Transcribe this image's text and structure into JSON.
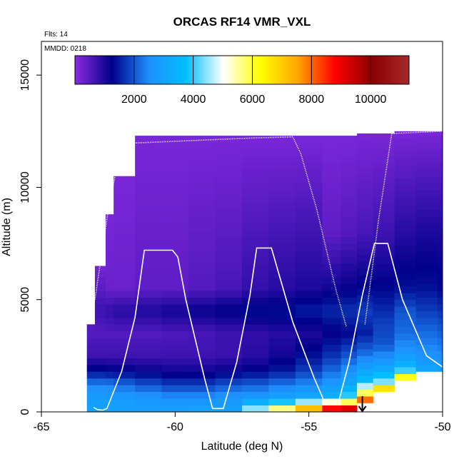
{
  "chart_data": {
    "type": "heatmap",
    "title": "ORCAS RF14 VMR_VXL",
    "annotation_flts": "Flts: 14",
    "annotation_mmdd": "MMDD: 0218",
    "xlabel": "Latitude (deg N)",
    "ylabel": "Altitude (m)",
    "xlim": [
      -65,
      -50
    ],
    "ylim": [
      0,
      16500
    ],
    "x_ticks": [
      -65,
      -60,
      -55,
      -50
    ],
    "x_tick_labels": [
      "-65",
      "-60",
      "-55",
      "-50"
    ],
    "y_ticks": [
      0,
      5000,
      10000,
      15000
    ],
    "y_tick_labels": [
      "0",
      "5000",
      "10000",
      "15000"
    ],
    "colorbar": {
      "range": [
        0,
        11300
      ],
      "ticks": [
        2000,
        4000,
        6000,
        8000,
        10000
      ],
      "tick_labels": [
        "2000",
        "4000",
        "6000",
        "8000",
        "10000"
      ],
      "colors": [
        "#8a2be2",
        "#00008b",
        "#1e90ff",
        "#00bfff",
        "#ffffff",
        "#ffff00",
        "#ffa500",
        "#ff0000",
        "#8b0000",
        "#a52a2a"
      ]
    },
    "flight_track": [
      [
        -63.05,
        200
      ],
      [
        -62.9,
        100
      ],
      [
        -62.7,
        80
      ],
      [
        -62.55,
        150
      ],
      [
        -62.0,
        1800
      ],
      [
        -61.5,
        4200
      ],
      [
        -61.15,
        7200
      ],
      [
        -60.1,
        7200
      ],
      [
        -59.9,
        6900
      ],
      [
        -59.6,
        5000
      ],
      [
        -58.9,
        1500
      ],
      [
        -58.6,
        150
      ],
      [
        -58.2,
        150
      ],
      [
        -57.7,
        2200
      ],
      [
        -57.2,
        5200
      ],
      [
        -56.95,
        7300
      ],
      [
        -56.4,
        7300
      ],
      [
        -55.6,
        4000
      ],
      [
        -54.8,
        1500
      ],
      [
        -54.4,
        400
      ],
      [
        -53.9,
        400
      ],
      [
        -53.5,
        2200
      ],
      [
        -53.0,
        5200
      ],
      [
        -52.55,
        7500
      ],
      [
        -52.05,
        7500
      ],
      [
        -51.5,
        5000
      ],
      [
        -50.6,
        2500
      ],
      [
        -50.0,
        2000
      ]
    ],
    "high_track": [
      [
        -63.0,
        5000
      ],
      [
        -62.5,
        9000
      ],
      [
        -62.0,
        11950
      ],
      [
        -57.1,
        12200
      ],
      [
        -55.6,
        12250
      ],
      [
        -55.3,
        11500
      ],
      [
        -54.7,
        9000
      ],
      [
        -54.0,
        5500
      ],
      [
        -53.6,
        3800
      ]
    ],
    "high_track_2": [
      [
        -52.9,
        3900
      ],
      [
        -52.4,
        8500
      ],
      [
        -51.9,
        12400
      ],
      [
        -50.0,
        12500
      ]
    ],
    "arrow_lat": -53.0,
    "curtain": [
      {
        "lat": -63.3,
        "alt_top": 3900,
        "profile": [
          [
            0,
            3000
          ],
          [
            600,
            2900
          ],
          [
            1200,
            2400
          ],
          [
            1800,
            1400
          ],
          [
            2500,
            700
          ],
          [
            3500,
            500
          ]
        ]
      },
      {
        "lat": -63.0,
        "alt_top": 6500,
        "profile": [
          [
            0,
            3000
          ],
          [
            600,
            2900
          ],
          [
            1200,
            2400
          ],
          [
            1800,
            1400
          ],
          [
            2500,
            700
          ],
          [
            3500,
            500
          ],
          [
            4500,
            700
          ],
          [
            6500,
            200
          ]
        ]
      },
      {
        "lat": -62.6,
        "alt_top": 8800,
        "profile": [
          [
            0,
            3000
          ],
          [
            600,
            2800
          ],
          [
            1200,
            2400
          ],
          [
            1800,
            1300
          ],
          [
            2500,
            700
          ],
          [
            3500,
            500
          ],
          [
            4500,
            800
          ],
          [
            5500,
            300
          ],
          [
            8800,
            150
          ]
        ]
      },
      {
        "lat": -62.3,
        "alt_top": 10500,
        "profile": [
          [
            0,
            2900
          ],
          [
            600,
            2800
          ],
          [
            1200,
            2200
          ],
          [
            1800,
            1300
          ],
          [
            2500,
            700
          ],
          [
            3500,
            500
          ],
          [
            4500,
            900
          ],
          [
            5500,
            300
          ],
          [
            10500,
            150
          ]
        ]
      },
      {
        "lat": -61.5,
        "alt_top": 12300,
        "profile": [
          [
            0,
            2900
          ],
          [
            600,
            2700
          ],
          [
            1200,
            2000
          ],
          [
            1800,
            1200
          ],
          [
            2500,
            700
          ],
          [
            3500,
            500
          ],
          [
            4500,
            1000
          ],
          [
            5500,
            400
          ],
          [
            12300,
            150
          ]
        ]
      },
      {
        "lat": -60.5,
        "alt_top": 12300,
        "profile": [
          [
            0,
            2900
          ],
          [
            600,
            2600
          ],
          [
            1200,
            1800
          ],
          [
            1800,
            1100
          ],
          [
            2500,
            700
          ],
          [
            3500,
            550
          ],
          [
            4500,
            1100
          ],
          [
            5500,
            400
          ],
          [
            12300,
            150
          ]
        ]
      },
      {
        "lat": -59.5,
        "alt_top": 12300,
        "profile": [
          [
            0,
            3000
          ],
          [
            600,
            2600
          ],
          [
            1200,
            1800
          ],
          [
            1800,
            1100
          ],
          [
            2500,
            700
          ],
          [
            3500,
            600
          ],
          [
            4500,
            1200
          ],
          [
            5500,
            500
          ],
          [
            12300,
            150
          ]
        ]
      },
      {
        "lat": -58.5,
        "alt_top": 12300,
        "profile": [
          [
            0,
            3000
          ],
          [
            600,
            2700
          ],
          [
            1200,
            2000
          ],
          [
            1800,
            1200
          ],
          [
            2500,
            750
          ],
          [
            3500,
            700
          ],
          [
            4500,
            1300
          ],
          [
            5500,
            600
          ],
          [
            12300,
            150
          ]
        ]
      },
      {
        "lat": -57.5,
        "alt_top": 12300,
        "profile": [
          [
            0,
            5000
          ],
          [
            600,
            2800
          ],
          [
            1200,
            2100
          ],
          [
            1800,
            1300
          ],
          [
            2500,
            900
          ],
          [
            3500,
            800
          ],
          [
            4500,
            1400
          ],
          [
            5500,
            800
          ],
          [
            12300,
            150
          ]
        ]
      },
      {
        "lat": -56.5,
        "alt_top": 12300,
        "profile": [
          [
            0,
            6500
          ],
          [
            600,
            3000
          ],
          [
            1200,
            2300
          ],
          [
            1800,
            1500
          ],
          [
            2500,
            1100
          ],
          [
            3500,
            900
          ],
          [
            4500,
            1400
          ],
          [
            5500,
            900
          ],
          [
            12300,
            150
          ]
        ]
      },
      {
        "lat": -55.5,
        "alt_top": 12300,
        "profile": [
          [
            0,
            8500
          ],
          [
            600,
            3200
          ],
          [
            1200,
            2500
          ],
          [
            1800,
            1800
          ],
          [
            2500,
            1400
          ],
          [
            3500,
            1000
          ],
          [
            4500,
            1500
          ],
          [
            5500,
            1000
          ],
          [
            12300,
            150
          ]
        ]
      },
      {
        "lat": -54.5,
        "alt_top": 12300,
        "profile": [
          [
            0,
            10500
          ],
          [
            600,
            3500
          ],
          [
            1200,
            2800
          ],
          [
            1800,
            2200
          ],
          [
            2500,
            1700
          ],
          [
            3500,
            1200
          ],
          [
            4500,
            1600
          ],
          [
            5500,
            1100
          ],
          [
            8000,
            400
          ],
          [
            12300,
            150
          ]
        ]
      },
      {
        "lat": -53.8,
        "alt_top": 12300,
        "profile": [
          [
            0,
            10800
          ],
          [
            600,
            4200
          ],
          [
            1200,
            3200
          ],
          [
            1800,
            2600
          ],
          [
            2500,
            2000
          ],
          [
            3500,
            1300
          ],
          [
            4500,
            1700
          ],
          [
            5500,
            1200
          ],
          [
            8000,
            500
          ],
          [
            12300,
            150
          ]
        ]
      },
      {
        "lat": -53.2,
        "alt_top": 12400,
        "profile": [
          [
            400,
            9000
          ],
          [
            900,
            5500
          ],
          [
            1500,
            3500
          ],
          [
            2500,
            2300
          ],
          [
            3500,
            1500
          ],
          [
            4500,
            1800
          ],
          [
            5500,
            1300
          ],
          [
            8000,
            600
          ],
          [
            12400,
            150
          ]
        ]
      },
      {
        "lat": -52.6,
        "alt_top": 12400,
        "profile": [
          [
            900,
            8000
          ],
          [
            1300,
            4500
          ],
          [
            2000,
            3000
          ],
          [
            3000,
            2000
          ],
          [
            4000,
            1800
          ],
          [
            5500,
            1300
          ],
          [
            8000,
            700
          ],
          [
            12400,
            150
          ]
        ]
      },
      {
        "lat": -51.8,
        "alt_top": 12500,
        "profile": [
          [
            1400,
            7200
          ],
          [
            1900,
            3700
          ],
          [
            2600,
            2700
          ],
          [
            3500,
            2200
          ],
          [
            4500,
            2000
          ],
          [
            5500,
            1400
          ],
          [
            8000,
            900
          ],
          [
            12500,
            150
          ]
        ]
      },
      {
        "lat": -51.0,
        "alt_top": 12500,
        "profile": [
          [
            1800,
            3200
          ],
          [
            2300,
            2700
          ],
          [
            3000,
            2400
          ],
          [
            4000,
            2000
          ],
          [
            5500,
            1400
          ],
          [
            8000,
            1000
          ],
          [
            12500,
            150
          ]
        ]
      },
      {
        "lat": -50.2,
        "alt_top": 12500,
        "profile": [
          [
            1800,
            3000
          ],
          [
            2300,
            2600
          ],
          [
            3000,
            2300
          ],
          [
            4000,
            1900
          ],
          [
            5500,
            1300
          ],
          [
            8000,
            1000
          ],
          [
            12500,
            150
          ]
        ]
      }
    ]
  }
}
